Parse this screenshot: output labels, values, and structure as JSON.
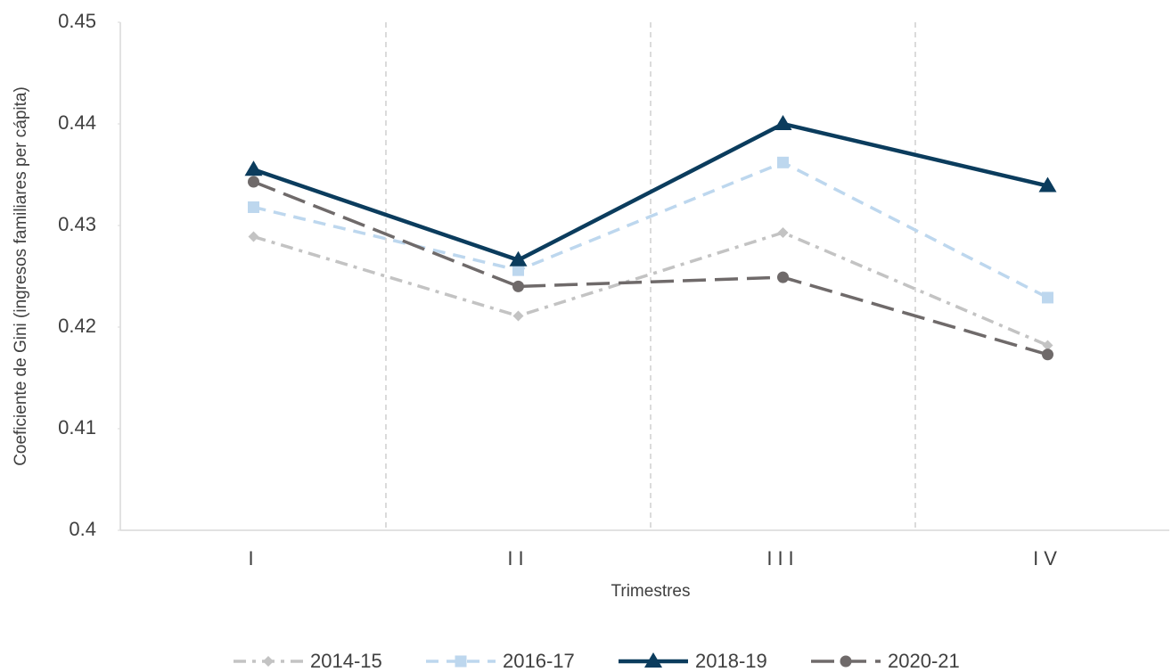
{
  "chart_data": {
    "type": "line",
    "y_label": "Coeficiente de Gini (ingresos familiares per cápita)",
    "x_label": "Trimestres",
    "categories": [
      "I",
      "II",
      "III",
      "IV"
    ],
    "series": [
      {
        "name": "2014-15",
        "color": "#c3c3c3",
        "line_style": "dash-dot",
        "marker": "diamond",
        "values": [
          0.4289,
          0.4211,
          0.4293,
          0.4182
        ]
      },
      {
        "name": "2016-17",
        "color": "#bdd7ee",
        "line_style": "dashed",
        "marker": "square",
        "values": [
          0.4318,
          0.4256,
          0.4362,
          0.4229
        ]
      },
      {
        "name": "2018-19",
        "color": "#0b3c5d",
        "line_style": "solid",
        "marker": "triangle",
        "values": [
          0.4355,
          0.4266,
          0.44,
          0.4339
        ]
      },
      {
        "name": "2020-21",
        "color": "#6f6a6a",
        "line_style": "long-dash",
        "marker": "circle",
        "values": [
          0.4343,
          0.424,
          0.4249,
          0.4173
        ]
      }
    ],
    "ylim": [
      0.4,
      0.45
    ],
    "yticks": [
      0.4,
      0.41,
      0.42,
      0.43,
      0.44,
      0.45
    ],
    "legend": "bottom"
  }
}
